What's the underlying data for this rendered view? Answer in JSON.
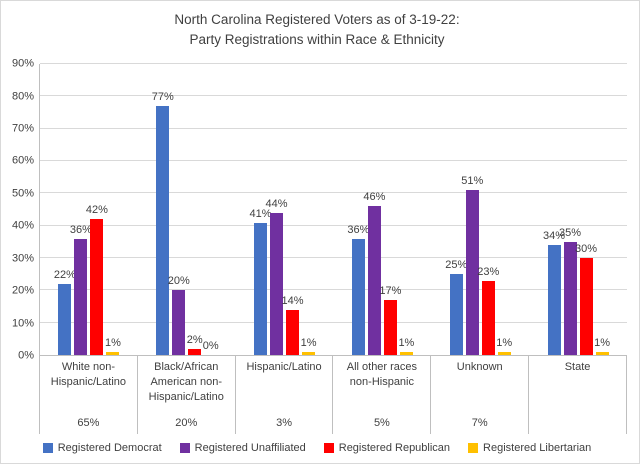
{
  "title": {
    "line1": "North Carolina Registered Voters as of 3-19-22:",
    "line2": "Party Registrations within Race & Ethnicity"
  },
  "chart_data": {
    "type": "bar",
    "title": "North Carolina Registered Voters as of 3-19-22: Party Registrations within Race & Ethnicity",
    "categories": [
      "White non-Hispanic/Latino",
      "Black/African American non-Hispanic/Latino",
      "Hispanic/Latino",
      "All other races non-Hispanic",
      "Unknown",
      "State"
    ],
    "category_share_labels": [
      "65%",
      "20%",
      "3%",
      "5%",
      "7%",
      ""
    ],
    "series": [
      {
        "name": "Registered Democrat",
        "color": "#4472C4",
        "values": [
          22,
          77,
          41,
          36,
          25,
          34
        ]
      },
      {
        "name": "Registered Unaffiliated",
        "color": "#7030A0",
        "values": [
          36,
          20,
          44,
          46,
          51,
          35
        ]
      },
      {
        "name": "Registered Republican",
        "color": "#FF0000",
        "values": [
          42,
          2,
          14,
          17,
          23,
          30
        ]
      },
      {
        "name": "Registered Libertarian",
        "color": "#FFC000",
        "values": [
          1,
          0,
          1,
          1,
          1,
          1
        ]
      }
    ],
    "ylim": [
      0,
      90
    ],
    "ytick_step": 10,
    "ytick_labels": [
      "0%",
      "10%",
      "20%",
      "30%",
      "40%",
      "50%",
      "60%",
      "70%",
      "80%",
      "90%"
    ],
    "data_labels": true,
    "grid": true,
    "legend_position": "bottom"
  }
}
